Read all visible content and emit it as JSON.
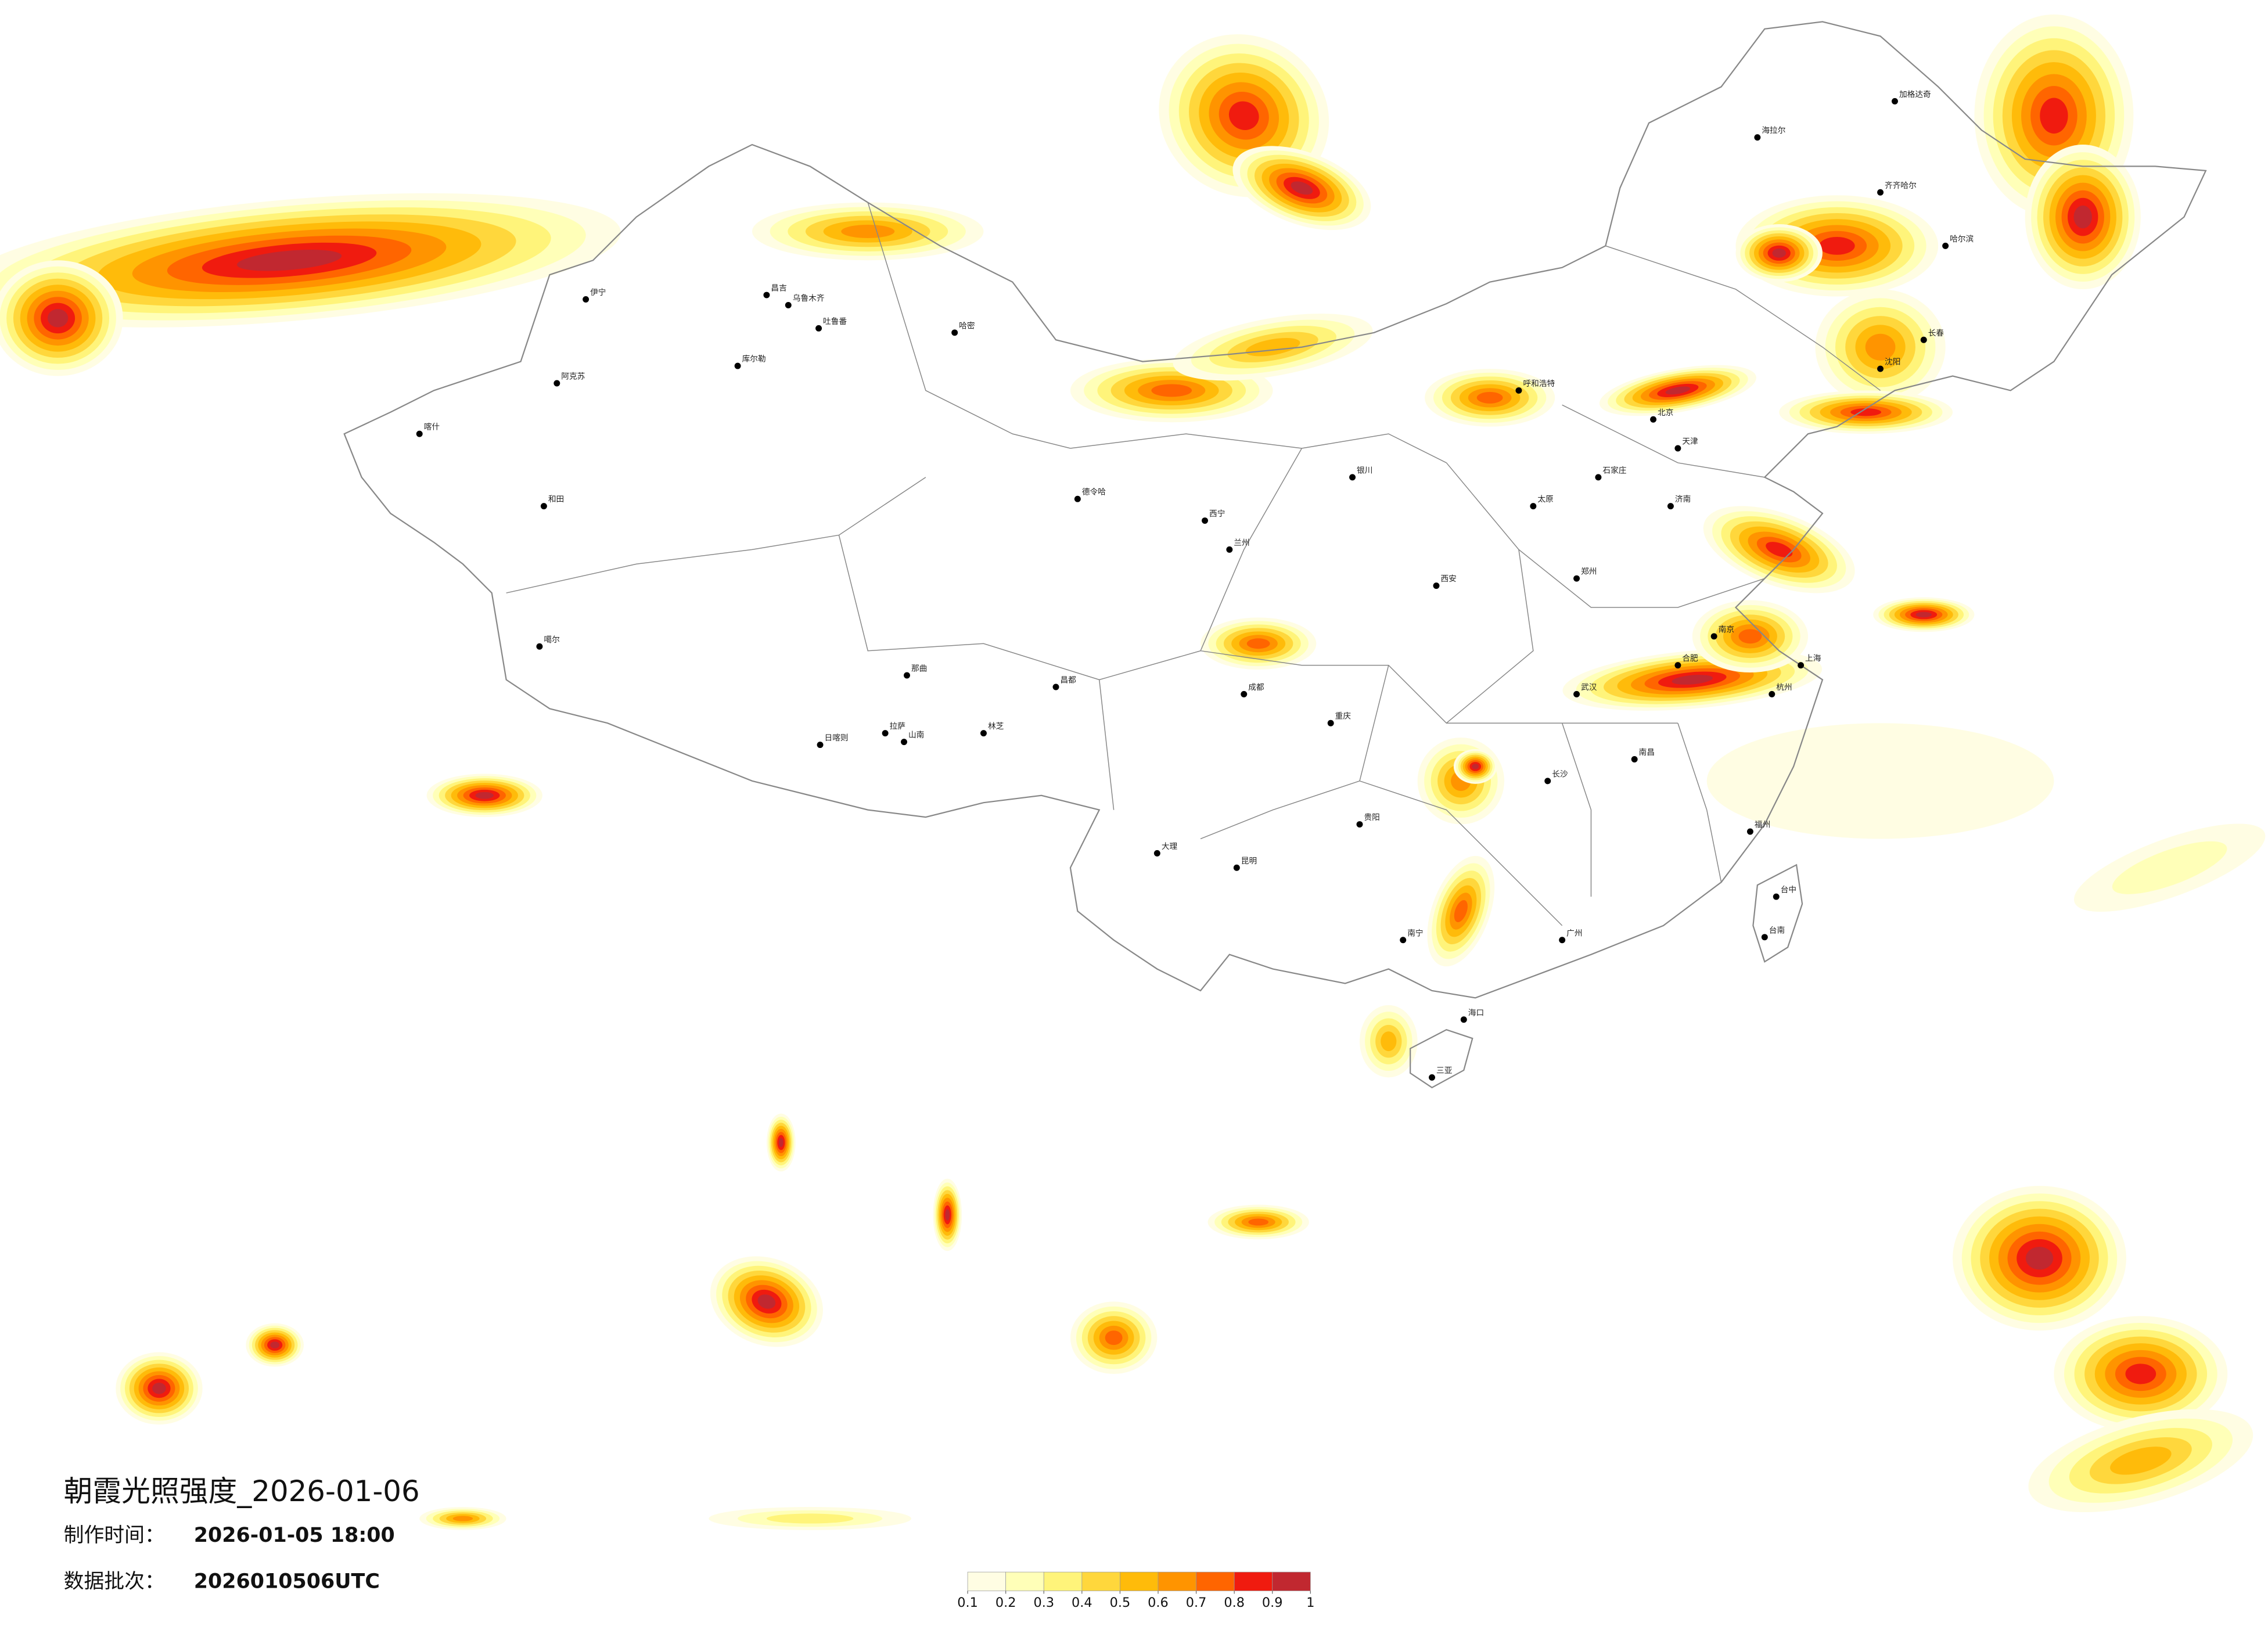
{
  "header": {
    "title": "朝霞光照强度_2026-01-06",
    "made_label": "制作时间：",
    "made_value": "2026-01-05 18:00",
    "batch_label": "数据批次：",
    "batch_value": "2026010506UTC"
  },
  "colorbar": {
    "colors": [
      "#fffde3",
      "#ffffb8",
      "#fff47a",
      "#ffd73c",
      "#ffbb0a",
      "#ff9400",
      "#ff6500",
      "#f01b0f",
      "#c12830"
    ],
    "ticks": [
      0.1,
      0.2,
      0.3,
      0.4,
      0.5,
      0.6,
      0.7,
      0.8,
      0.9,
      1
    ]
  },
  "cities": [
    "伊宁",
    "昌吉",
    "乌鲁木齐",
    "吐鲁番",
    "哈密",
    "库尔勒",
    "阿克苏",
    "喀什",
    "和田",
    "德令哈",
    "噶尔",
    "日喀则",
    "拉萨",
    "山南",
    "林芝",
    "那曲",
    "昌都",
    "海拉尔",
    "加格达奇",
    "齐齐哈尔",
    "哈尔滨",
    "长春",
    "沈阳",
    "北京",
    "天津",
    "石家庄",
    "太原",
    "济南",
    "郑州",
    "西安",
    "兰州",
    "西宁",
    "银川",
    "呼和浩特",
    "南京",
    "上海",
    "杭州",
    "合肥",
    "武汉",
    "长沙",
    "南昌",
    "福州",
    "广州",
    "南宁",
    "海口",
    "三亚",
    "昆明",
    "贵阳",
    "成都",
    "重庆",
    "大理",
    "台中",
    "台南"
  ]
}
